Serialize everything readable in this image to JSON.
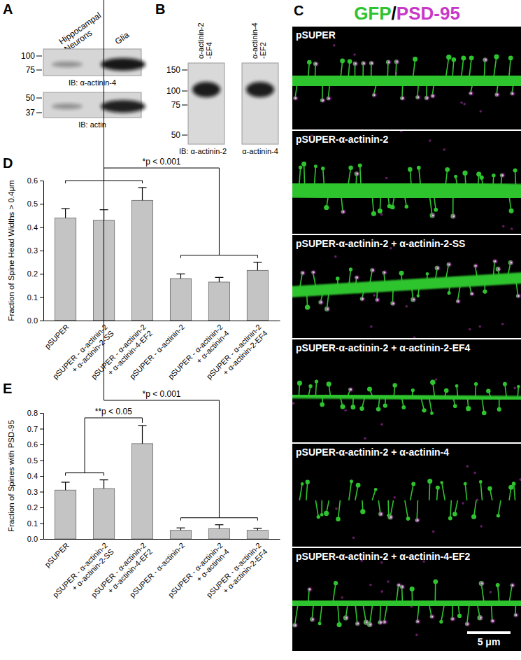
{
  "chart_data": [
    {
      "type": "bar",
      "title": "D",
      "y_label": "Fraction of Spine Head Widths > 0.4μm",
      "categories": [
        "pSUPER",
        "pSUPER - α-actinin-2\n+ α-actinin-2-SS",
        "pSUPER - α-actinin-2\n+ α-actinin-4-EF2",
        "pSUPER - α-actinin-2",
        "pSUPER - α-actinin-2\n+ α-actinin-4",
        "pSUPER - α-actinin-2\n+ α-actinin-2-EF4"
      ],
      "values": [
        0.44,
        0.43,
        0.515,
        0.18,
        0.165,
        0.215
      ],
      "errors": [
        0.04,
        0.045,
        0.055,
        0.02,
        0.02,
        0.035
      ],
      "color": "#c4c4c4",
      "ylim": [
        0,
        0.6
      ],
      "yticks": [
        {
          "value": 0,
          "label": "0.0"
        },
        0.1,
        0.2,
        0.3,
        0.4,
        0.5,
        0.6
      ],
      "annotations": [
        "*p < 0.001"
      ]
    },
    {
      "type": "bar",
      "title": "E",
      "y_label": "Fraction of Spines with PSD-95",
      "categories": [
        "pSUPER",
        "pSUPER - α-actinin-2\n+ α-actinin-2-SS",
        "pSUPER - α-actinin-2\n+ α-actinin-4-EF2",
        "pSUPER - α-actinin-2",
        "pSUPER - α-actinin-2\n+ α-actinin-4",
        "pSUPER - α-actinin-2\n+ α-actinin-2-EF4"
      ],
      "values": [
        0.31,
        0.32,
        0.605,
        0.055,
        0.065,
        0.055
      ],
      "errors": [
        0.05,
        0.055,
        0.115,
        0.015,
        0.025,
        0.012
      ],
      "color": "#c4c4c4",
      "ylim": [
        0,
        0.8
      ],
      "yticks": [
        {
          "value": 0,
          "label": "0.0"
        },
        0.1,
        0.2,
        0.3,
        0.4,
        0.5,
        0.6,
        0.7,
        0.8
      ],
      "annotations": [
        "*p < 0.001",
        "**p < 0.05"
      ]
    }
  ],
  "panel_a": {
    "letter": "A",
    "lanes": [
      "Hippocampal\nNeurons",
      "Glia"
    ],
    "blots": [
      {
        "markers": [
          100,
          75
        ],
        "label": "IB: α-actinin-4"
      },
      {
        "markers": [
          50,
          37
        ],
        "label": "IB: actin"
      }
    ]
  },
  "panel_b": {
    "letter": "B",
    "lanes": [
      "α-actinin-2\n-EF4",
      "α-actinin-4\n-EF2"
    ],
    "markers": [
      150,
      100,
      75,
      50
    ],
    "blot_labels": [
      "IB: α-actinin-2",
      "α-actinin-4"
    ]
  },
  "panel_c": {
    "letter": "C",
    "title": [
      {
        "text": "GFP",
        "color": "#2fc42f"
      },
      {
        "text": "/",
        "color": "#000000"
      },
      {
        "text": "PSD-95",
        "color": "#c837c8"
      }
    ],
    "images": [
      "pSUPER",
      "pSUPER-α-actinin-2",
      "pSUPER-α-actinin-2 + α-actinin-2-SS",
      "pSUPER-α-actinin-2 + α-actinin-2-EF4",
      "pSUPER-α-actinin-2 + α-actinin-4",
      "pSUPER-α-actinin-2 + α-actinin-4-EF2"
    ],
    "scale_bar": "5 μm"
  }
}
